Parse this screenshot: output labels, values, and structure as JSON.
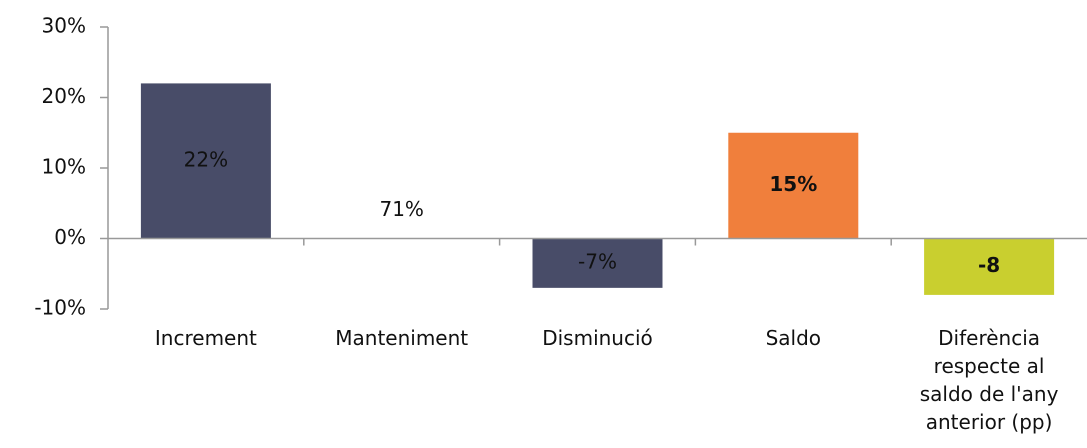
{
  "chart_data": {
    "type": "bar",
    "categories": [
      "Increment",
      "Manteniment",
      "Disminució",
      "Saldo",
      "Diferència respecte al saldo de l'any anterior (pp)"
    ],
    "values": [
      22,
      71,
      -7,
      15,
      -8
    ],
    "value_labels": [
      "22%",
      "71%",
      "-7%",
      "15%",
      "-8"
    ],
    "colors": [
      "#484c68",
      null,
      "#484c68",
      "#f07f3c",
      "#c9cf2f"
    ],
    "label_colors": [
      "#ffffff",
      "#111111",
      "#ffffff",
      "#111111",
      "#111111"
    ],
    "label_bold": [
      false,
      false,
      false,
      true,
      true
    ],
    "ylim": [
      -10,
      30
    ],
    "yticks": [
      {
        "value": -10,
        "label": "-10%"
      },
      {
        "value": 0,
        "label": "0%"
      },
      {
        "value": 10,
        "label": "10%"
      },
      {
        "value": 20,
        "label": "20%"
      },
      {
        "value": 30,
        "label": "30%"
      }
    ],
    "grid": false
  }
}
